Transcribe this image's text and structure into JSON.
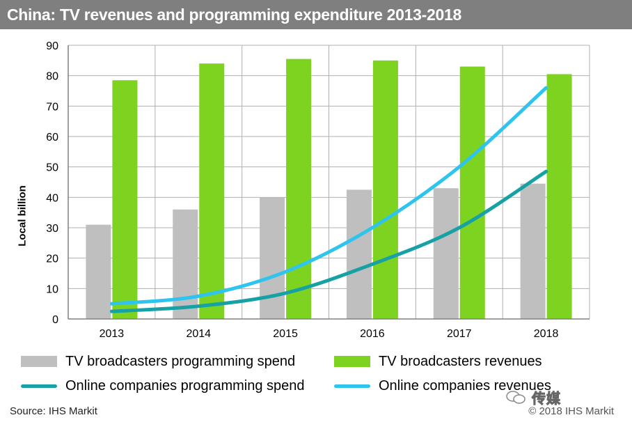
{
  "title": "China: TV revenues and programming expenditure 2013-2018",
  "source": "Source: IHS Markit",
  "copyright": "© 2018 IHS Markit",
  "watermark": "传媒",
  "colors": {
    "title_bg": "#7f7f7f",
    "gray_bar": "#bfbfbf",
    "green_bar": "#7ed321",
    "teal_line": "#17a1a5",
    "cyan_line": "#2ec4ee"
  },
  "chart_data": {
    "type": "bar",
    "categories": [
      "2013",
      "2014",
      "2015",
      "2016",
      "2017",
      "2018"
    ],
    "ylabel": "Local billion",
    "xlabel": "",
    "ylim": [
      0,
      90
    ],
    "yticks": [
      0,
      10,
      20,
      30,
      40,
      50,
      60,
      70,
      80,
      90
    ],
    "grid": true,
    "legend_placement": "bottom",
    "series": [
      {
        "name": "TV broadcasters programming spend",
        "kind": "bar",
        "values": [
          31,
          36,
          40,
          42.5,
          43,
          44.5
        ]
      },
      {
        "name": "TV broadcasters revenues",
        "kind": "bar",
        "values": [
          78.5,
          84,
          85.5,
          85,
          83,
          80.5
        ]
      },
      {
        "name": "Online companies programming spend",
        "kind": "line",
        "values": [
          2.5,
          4.2,
          8.5,
          18,
          30,
          48.5
        ]
      },
      {
        "name": "Online companies revenues",
        "kind": "line",
        "values": [
          5,
          7.5,
          15.5,
          30,
          50,
          76
        ]
      }
    ]
  }
}
